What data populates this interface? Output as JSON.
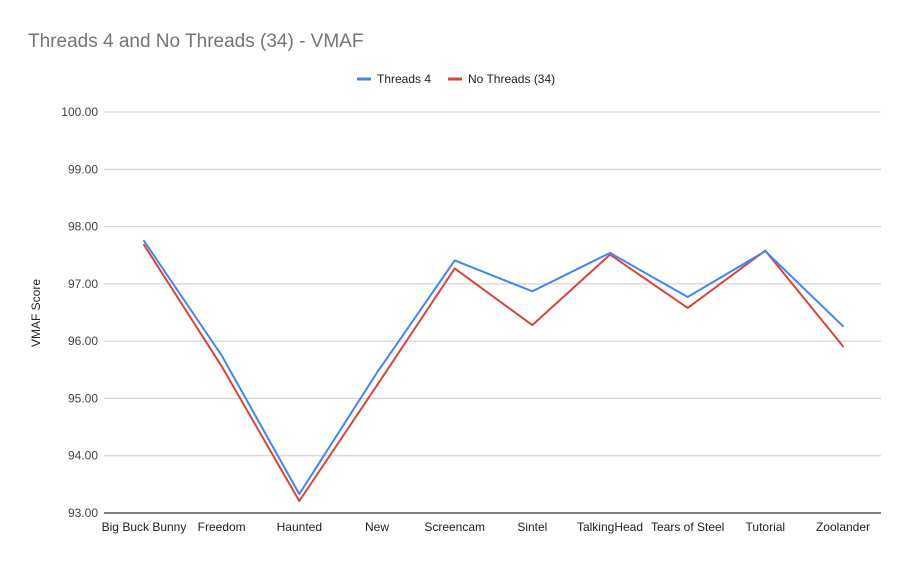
{
  "chart_data": {
    "type": "line",
    "title": "Threads 4 and No Threads (34) - VMAF",
    "xlabel": "",
    "ylabel": "VMAF Score",
    "ylim": [
      93,
      100
    ],
    "yticks": [
      "93.00",
      "94.00",
      "95.00",
      "96.00",
      "97.00",
      "98.00",
      "99.00",
      "100.00"
    ],
    "grid": true,
    "legend_position": "top-center",
    "categories": [
      "Big Buck Bunny",
      "Freedom",
      "Haunted",
      "New",
      "Screencam",
      "Sintel",
      "TalkingHead",
      "Tears of Steel",
      "Tutorial",
      "Zoolander"
    ],
    "series": [
      {
        "name": "Threads 4",
        "color": "#4285f4",
        "values": [
          97.75,
          95.75,
          93.33,
          95.45,
          97.41,
          96.87,
          97.54,
          96.77,
          97.57,
          96.26
        ]
      },
      {
        "name": "No Threads (34)",
        "color": "#db4437",
        "values": [
          97.68,
          95.56,
          93.21,
          95.23,
          97.27,
          96.28,
          97.51,
          96.58,
          97.58,
          95.91
        ]
      }
    ]
  }
}
